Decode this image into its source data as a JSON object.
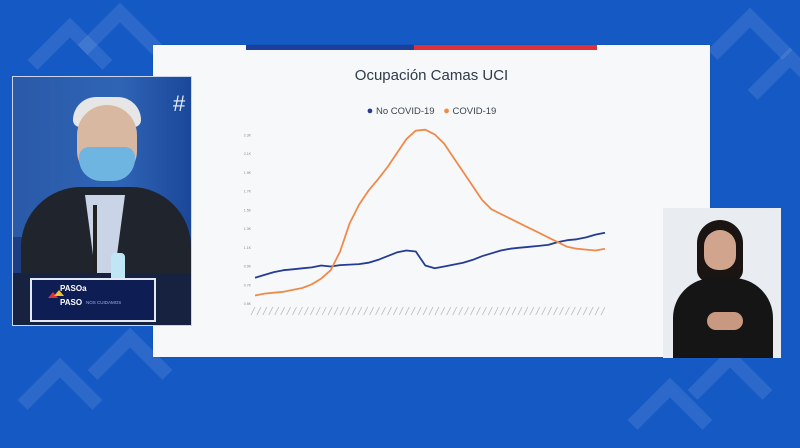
{
  "colors": {
    "background": "#1559c4",
    "slide_bar_blue": "#1d3f9b",
    "slide_bar_red": "#e0303a",
    "no_covid": "#243c93",
    "covid": "#f08a4b"
  },
  "slide": {
    "title": "Ocupación Camas UCI",
    "legend": [
      "No COVID-19",
      "COVID-19"
    ]
  },
  "presenter": {
    "background_mark": "#",
    "nameplate": {
      "line1": "PASOa",
      "line2": "PASO",
      "tagline": "NOS CUIDAMOS"
    }
  },
  "chart_data": {
    "type": "line",
    "title": "Ocupación Camas UCI",
    "y_tick_labels": [
      "0.5K",
      "0.6K",
      "0.7K",
      "0.8K",
      "0.9K",
      "1.0K",
      "1.1K",
      "1.2K",
      "1.3K",
      "1.4K",
      "1.5K",
      "1.6K",
      "1.7K",
      "1.8K",
      "1.9K",
      "2.0K",
      "2.1K",
      "2.2K",
      "2.3K",
      "2.4K"
    ],
    "ylim": [
      500,
      2400
    ],
    "x_labels_illegible": true,
    "grid": false,
    "legend_position": "top",
    "series": [
      {
        "name": "No COVID-19",
        "color": "#243c93",
        "values": [
          770,
          800,
          830,
          850,
          860,
          870,
          880,
          900,
          890,
          905,
          910,
          915,
          930,
          960,
          1000,
          1040,
          1060,
          1050,
          900,
          870,
          890,
          910,
          930,
          960,
          1000,
          1030,
          1060,
          1080,
          1090,
          1100,
          1110,
          1120,
          1150,
          1170,
          1180,
          1200,
          1230,
          1250
        ]
      },
      {
        "name": "COVID-19",
        "color": "#f08a4b",
        "values": [
          580,
          600,
          610,
          620,
          640,
          660,
          700,
          760,
          850,
          1050,
          1350,
          1550,
          1700,
          1820,
          1950,
          2100,
          2250,
          2340,
          2350,
          2300,
          2200,
          2050,
          1900,
          1750,
          1600,
          1500,
          1450,
          1400,
          1350,
          1300,
          1250,
          1200,
          1150,
          1100,
          1080,
          1070,
          1060,
          1080
        ]
      }
    ]
  }
}
